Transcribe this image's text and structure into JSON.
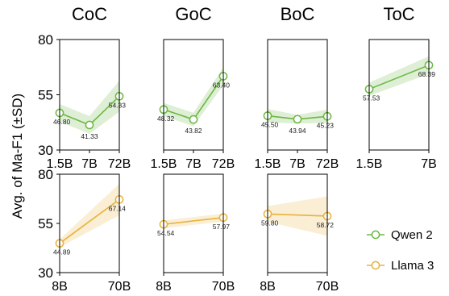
{
  "figure": {
    "ylabel": "Avg. of Ma-F1 (±SD)",
    "legend": [
      {
        "name": "Qwen 2",
        "color": "#6bb843"
      },
      {
        "name": "Llama 3",
        "color": "#e8b23c"
      }
    ]
  },
  "chart_data": [
    {
      "type": "line",
      "title": "CoC",
      "model": "Qwen 2",
      "color": "#6bb843",
      "categories": [
        "1.5B",
        "7B",
        "72B"
      ],
      "values": [
        46.8,
        41.33,
        54.33
      ],
      "labels": [
        "46.80",
        "41.33",
        "54.33"
      ],
      "sd": [
        4,
        4,
        7
      ],
      "ylim": [
        30,
        80
      ],
      "yticks": [
        30,
        55,
        80
      ]
    },
    {
      "type": "line",
      "title": "GoC",
      "model": "Qwen 2",
      "color": "#6bb843",
      "categories": [
        "1.5B",
        "7B",
        "72B"
      ],
      "values": [
        48.32,
        43.82,
        63.4
      ],
      "labels": [
        "48.32",
        "43.82",
        "63.40"
      ],
      "sd": [
        3,
        3,
        4
      ],
      "ylim": [
        30,
        80
      ],
      "yticks": [
        30,
        55,
        80
      ]
    },
    {
      "type": "line",
      "title": "BoC",
      "model": "Qwen 2",
      "color": "#6bb843",
      "categories": [
        "1.5B",
        "7B",
        "72B"
      ],
      "values": [
        45.5,
        43.94,
        45.23
      ],
      "labels": [
        "45.50",
        "43.94",
        "45.23"
      ],
      "sd": [
        3,
        2,
        3
      ],
      "ylim": [
        30,
        80
      ],
      "yticks": [
        30,
        55,
        80
      ]
    },
    {
      "type": "line",
      "title": "ToC",
      "model": "Qwen 2",
      "color": "#6bb843",
      "categories": [
        "1.5B",
        "7B"
      ],
      "values": [
        57.53,
        68.39
      ],
      "labels": [
        "57.53",
        "68.39"
      ],
      "sd": [
        3,
        4
      ],
      "ylim": [
        30,
        80
      ],
      "yticks": [
        30,
        55,
        80
      ]
    },
    {
      "type": "line",
      "title": "",
      "model": "Llama 3",
      "color": "#e8b23c",
      "categories": [
        "8B",
        "70B"
      ],
      "values": [
        44.89,
        67.14
      ],
      "labels": [
        "44.89",
        "67.14"
      ],
      "sd": [
        2,
        8
      ],
      "ylim": [
        30,
        80
      ],
      "yticks": [
        30,
        55,
        80
      ]
    },
    {
      "type": "line",
      "title": "",
      "model": "Llama 3",
      "color": "#e8b23c",
      "categories": [
        "8B",
        "70B"
      ],
      "values": [
        54.54,
        57.97
      ],
      "labels": [
        "54.54",
        "57.97"
      ],
      "sd": [
        2,
        2
      ],
      "ylim": [
        30,
        80
      ],
      "yticks": [
        30,
        55,
        80
      ]
    },
    {
      "type": "line",
      "title": "",
      "model": "Llama 3",
      "color": "#e8b23c",
      "categories": [
        "8B",
        "70B"
      ],
      "values": [
        59.8,
        58.72
      ],
      "labels": [
        "59.80",
        "58.72"
      ],
      "sd": [
        4,
        10
      ],
      "ylim": [
        30,
        80
      ],
      "yticks": [
        30,
        55,
        80
      ]
    }
  ]
}
